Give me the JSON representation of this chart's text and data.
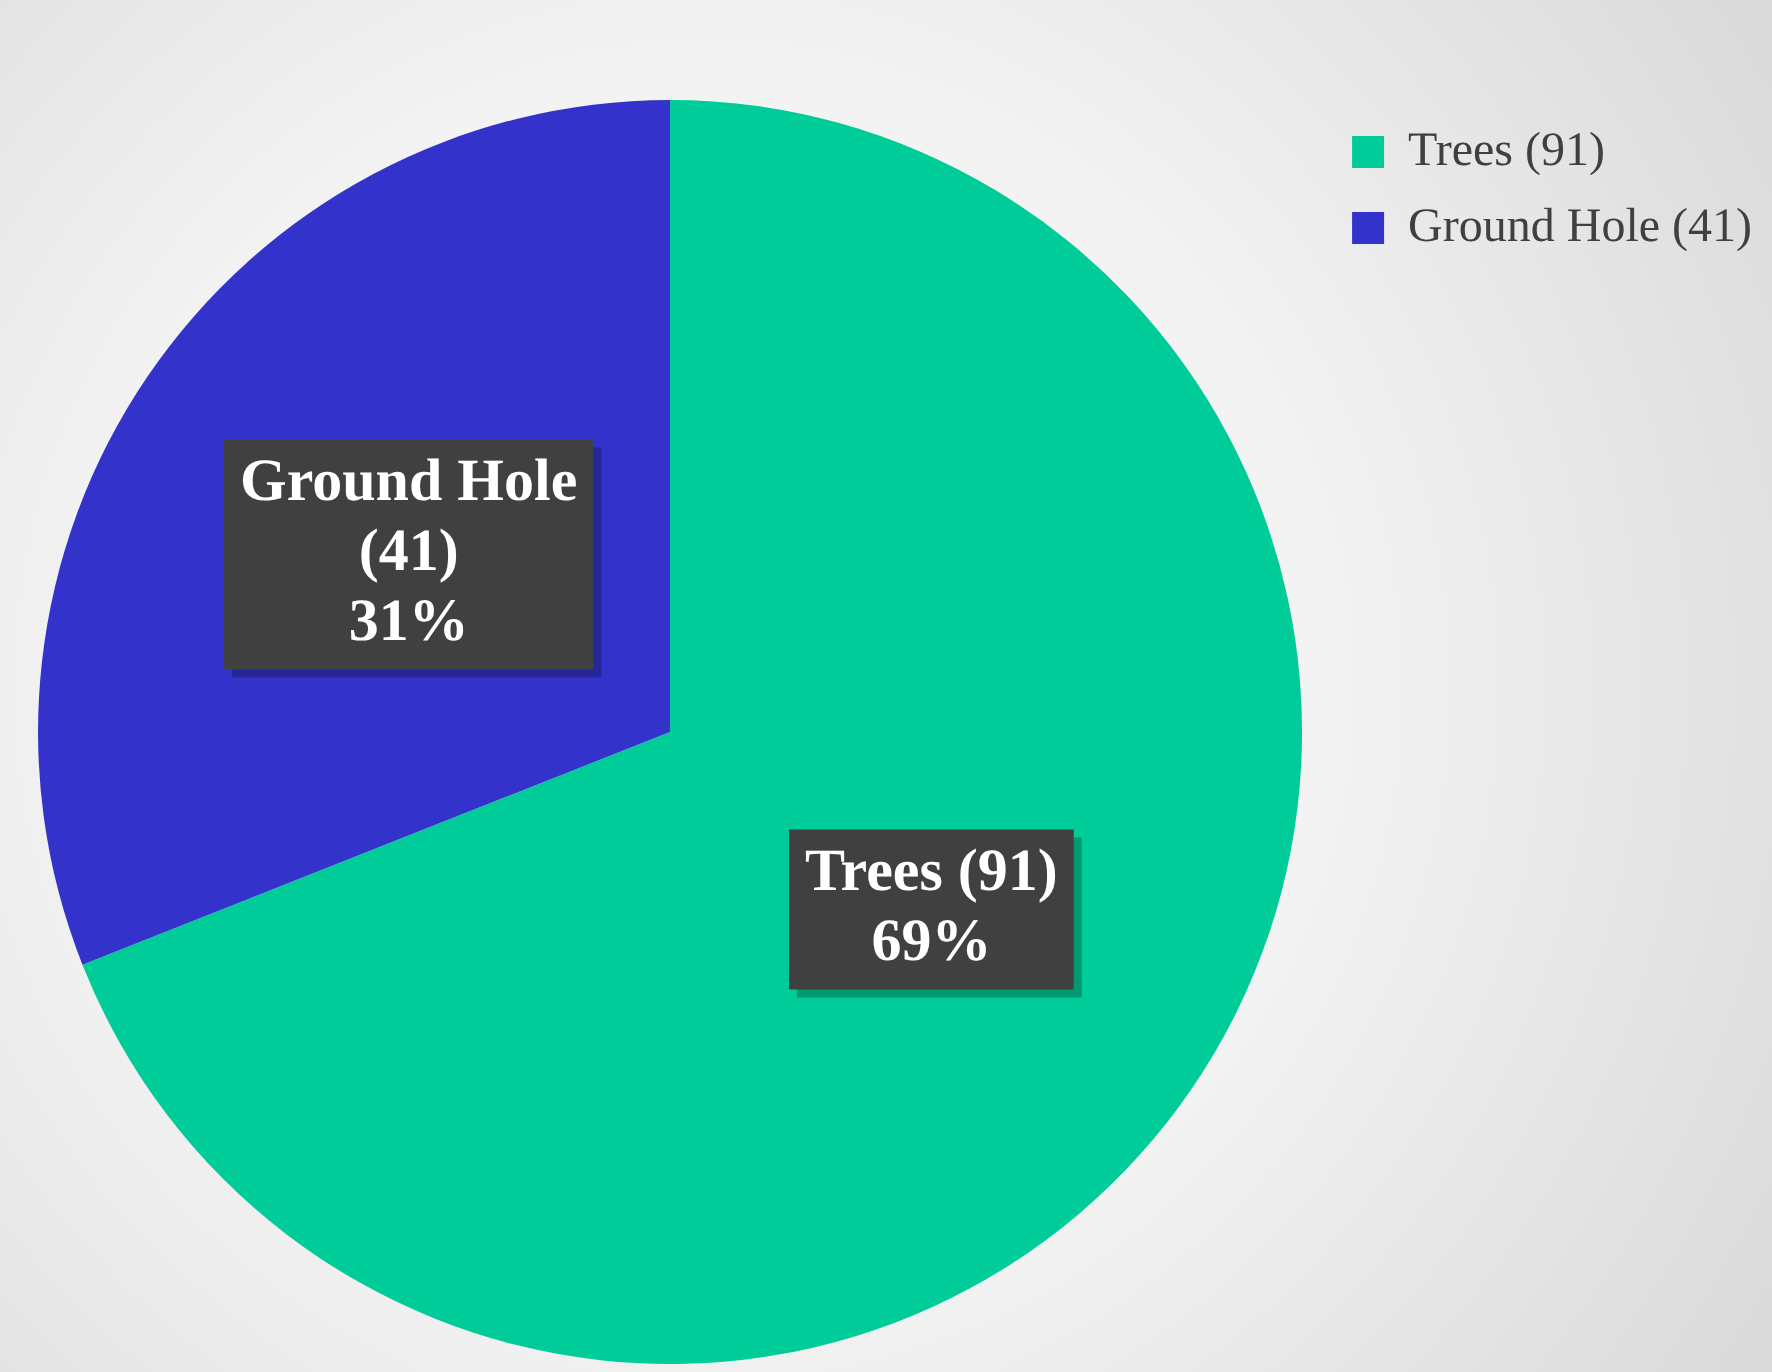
{
  "chart_data": {
    "type": "pie",
    "categories": [
      "Trees (91)",
      "Ground Hole (41)"
    ],
    "values": [
      69,
      31
    ],
    "colors": [
      "#00cc99",
      "#3333cc"
    ],
    "value_labels": [
      "69%",
      "31%"
    ],
    "legend": "top right"
  }
}
